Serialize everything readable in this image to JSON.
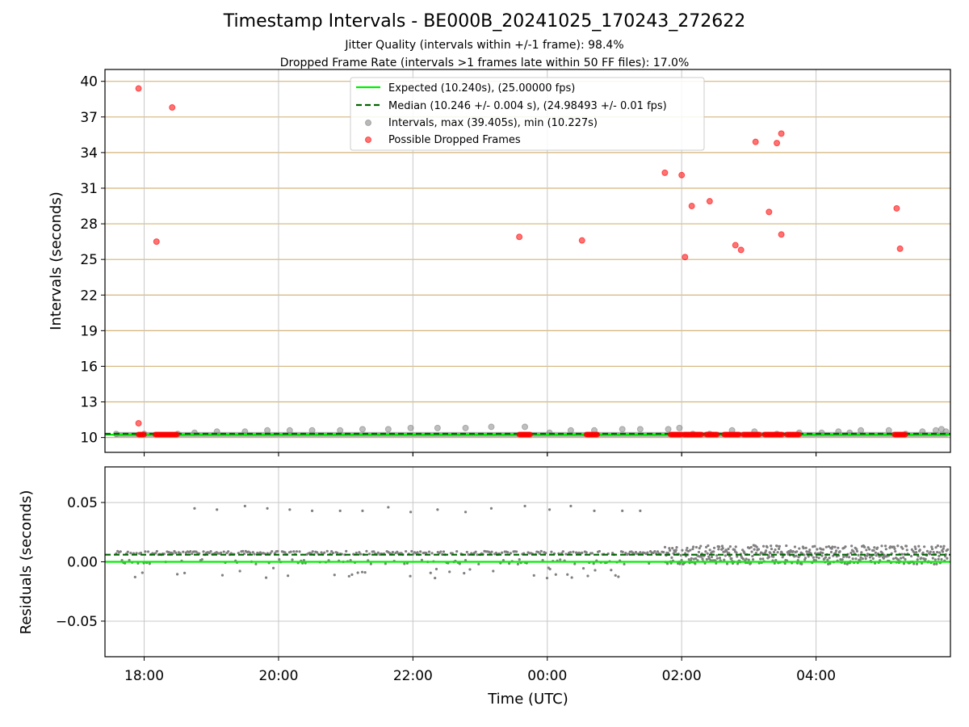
{
  "title": "Timestamp Intervals - BE000B_20241025_170243_272622",
  "subtitle_1": "Jitter Quality (intervals within +/-1 frame): 98.4%",
  "subtitle_2": "Dropped Frame Rate (intervals >1 frames late within 50 FF files): 17.0%",
  "chart_data": [
    {
      "type": "scatter",
      "ylabel": "Intervals (seconds)",
      "xlim": [
        "17:25",
        "06:00"
      ],
      "ylim": [
        8.75,
        41.0
      ],
      "y_ticks": [
        10,
        13,
        16,
        19,
        22,
        25,
        28,
        31,
        34,
        37,
        40
      ],
      "x_tick_labels": [
        "18:00",
        "20:00",
        "22:00",
        "00:00",
        "02:00",
        "04:00"
      ],
      "grid": true,
      "legend_position": "top-center",
      "expected_line": {
        "label": "Expected (10.240s), (25.00000 fps)",
        "value": 10.24,
        "color": "#00ee00"
      },
      "median_line": {
        "label": "Median (10.246 +/- 0.004 s), (24.98493 +/- 0.01 fps)",
        "value": 10.246,
        "color": "#006400"
      },
      "series": [
        {
          "name": "Intervals, max (39.405s), min (10.227s)",
          "color": "#808080",
          "x": [
            "17:35",
            "18:00",
            "18:30",
            "18:45",
            "19:05",
            "19:30",
            "19:50",
            "20:10",
            "20:30",
            "20:55",
            "21:15",
            "21:38",
            "21:58",
            "22:22",
            "22:47",
            "23:10",
            "23:40",
            "00:02",
            "00:21",
            "00:42",
            "01:07",
            "01:23",
            "01:48",
            "01:58",
            "02:10",
            "02:25",
            "02:45",
            "03:05",
            "03:25",
            "03:45",
            "04:05",
            "04:20",
            "04:30",
            "04:40",
            "05:05",
            "05:20",
            "05:35",
            "05:47",
            "05:52",
            "05:56"
          ],
          "y": [
            10.3,
            10.3,
            10.3,
            10.4,
            10.5,
            10.5,
            10.6,
            10.6,
            10.6,
            10.6,
            10.7,
            10.7,
            10.8,
            10.8,
            10.8,
            10.9,
            10.9,
            10.4,
            10.6,
            10.6,
            10.7,
            10.7,
            10.7,
            10.8,
            10.3,
            10.3,
            10.6,
            10.5,
            10.3,
            10.4,
            10.4,
            10.5,
            10.4,
            10.6,
            10.6,
            10.3,
            10.5,
            10.6,
            10.7,
            10.5
          ]
        },
        {
          "name": "Possible Dropped Frames",
          "color": "#ff0000",
          "x": [
            "17:55",
            "17:55",
            "18:11",
            "18:25",
            "23:35",
            "00:31",
            "01:45",
            "02:00",
            "02:03",
            "02:09",
            "02:25",
            "02:48",
            "02:53",
            "03:06",
            "03:18",
            "03:25",
            "03:29",
            "03:29",
            "05:12",
            "05:15"
          ],
          "y": [
            39.4,
            11.2,
            26.5,
            37.8,
            26.9,
            26.6,
            32.3,
            32.1,
            25.2,
            29.5,
            29.9,
            26.2,
            25.8,
            34.9,
            29.0,
            34.8,
            27.1,
            35.6,
            29.3,
            25.9
          ],
          "clusters": [
            {
              "x_start": "17:55",
              "x_end": "18:00",
              "y": 10.25
            },
            {
              "x_start": "18:10",
              "x_end": "18:30",
              "y": 10.25
            },
            {
              "x_start": "23:35",
              "x_end": "23:45",
              "y": 10.25
            },
            {
              "x_start": "00:35",
              "x_end": "00:45",
              "y": 10.25
            },
            {
              "x_start": "01:50",
              "x_end": "02:00",
              "y": 10.25
            },
            {
              "x_start": "02:02",
              "x_end": "02:18",
              "y": 10.25
            },
            {
              "x_start": "02:22",
              "x_end": "02:32",
              "y": 10.25
            },
            {
              "x_start": "02:38",
              "x_end": "02:52",
              "y": 10.25
            },
            {
              "x_start": "02:55",
              "x_end": "03:10",
              "y": 10.25
            },
            {
              "x_start": "03:14",
              "x_end": "03:30",
              "y": 10.25
            },
            {
              "x_start": "03:34",
              "x_end": "03:45",
              "y": 10.25
            },
            {
              "x_start": "05:10",
              "x_end": "05:20",
              "y": 10.25
            }
          ]
        }
      ]
    },
    {
      "type": "scatter",
      "xlabel": "Time (UTC)",
      "ylabel": "Residuals (seconds)",
      "xlim": [
        "17:25",
        "06:00"
      ],
      "ylim": [
        -0.08,
        0.08
      ],
      "y_ticks": [
        0.05,
        0.0,
        -0.05
      ],
      "y_tick_labels": [
        "0.05",
        "0.00",
        "−0.05"
      ],
      "x_tick_labels": [
        "18:00",
        "20:00",
        "22:00",
        "00:00",
        "02:00",
        "04:00"
      ],
      "grid": true,
      "expected_line": {
        "value": 0.0,
        "color": "#00ee00"
      },
      "median_line": {
        "value": 0.006,
        "color": "#006400"
      },
      "series": [
        {
          "name": "Residuals",
          "color": "#808080",
          "outliers_x": [
            "18:45",
            "19:05",
            "19:30",
            "19:50",
            "20:10",
            "20:30",
            "20:55",
            "21:15",
            "21:38",
            "21:58",
            "22:22",
            "22:47",
            "23:10",
            "23:40",
            "00:02",
            "00:21",
            "00:42",
            "01:07",
            "01:23"
          ],
          "outliers_y": [
            0.045,
            0.044,
            0.047,
            0.045,
            0.044,
            0.043,
            0.043,
            0.043,
            0.046,
            0.042,
            0.044,
            0.042,
            0.045,
            0.047,
            0.044,
            0.047,
            0.043,
            0.043,
            0.043
          ],
          "band_start": "17:35",
          "band_end": "05:58",
          "band_dense_from": "01:45"
        }
      ]
    }
  ]
}
